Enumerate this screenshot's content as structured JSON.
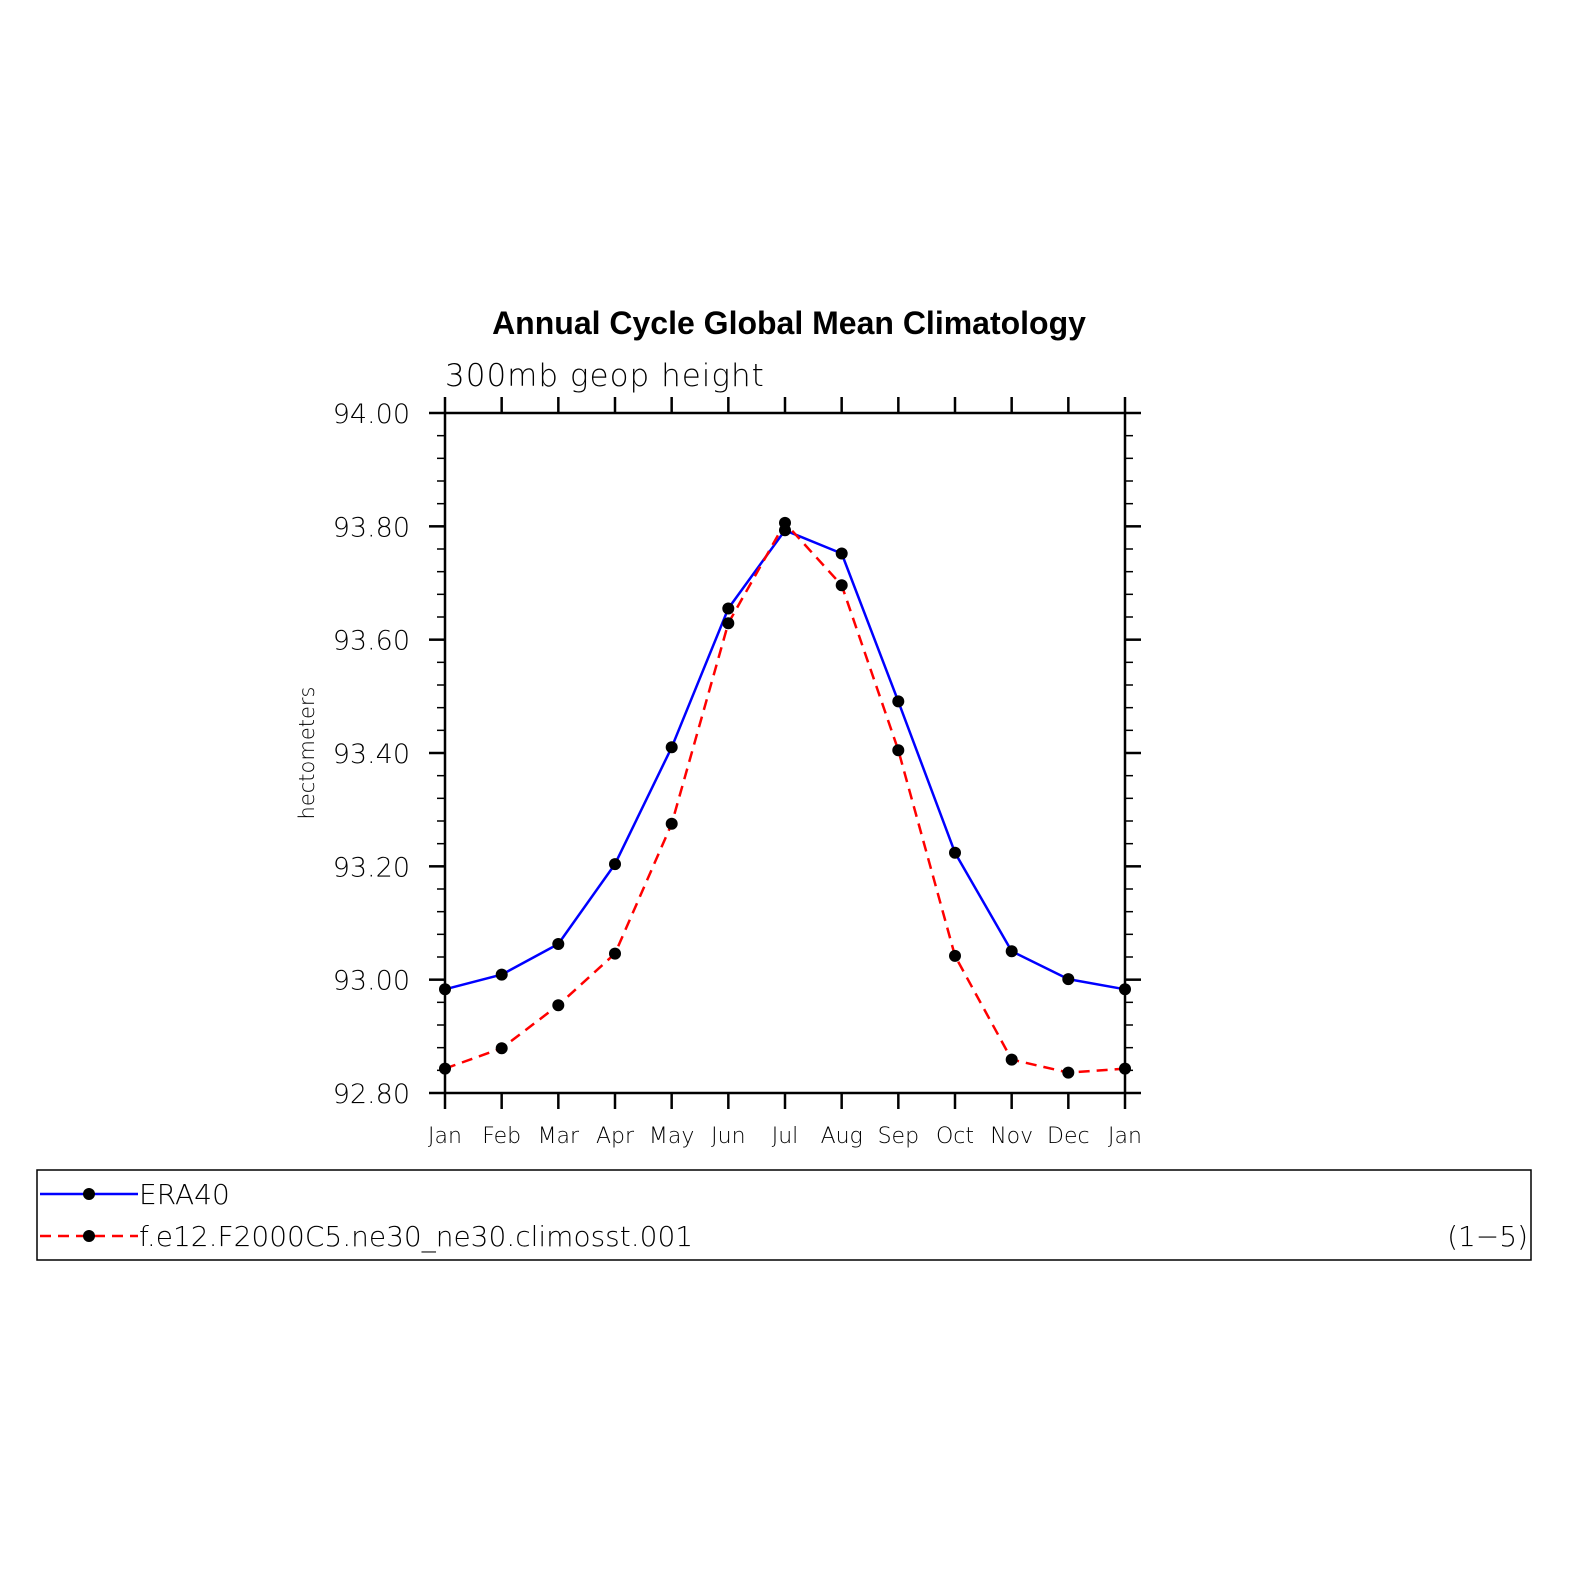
{
  "chart_data": {
    "type": "line",
    "title": "Annual Cycle Global Mean Climatology",
    "subtitle": "300mb geop height",
    "ylabel": "hectometers",
    "xlabel": "",
    "categories": [
      "Jan",
      "Feb",
      "Mar",
      "Apr",
      "May",
      "Jun",
      "Jul",
      "Aug",
      "Sep",
      "Oct",
      "Nov",
      "Dec",
      "Jan"
    ],
    "ylim": [
      92.8,
      94.0
    ],
    "yticks": [
      "92.80",
      "93.00",
      "93.20",
      "93.40",
      "93.60",
      "93.80",
      "94.00"
    ],
    "series": [
      {
        "name": "ERA40",
        "color": "#0000ff",
        "style": "solid",
        "marker": "filled-circle",
        "values": [
          92.983,
          93.009,
          93.063,
          93.204,
          93.41,
          93.655,
          93.793,
          93.752,
          93.491,
          93.224,
          93.05,
          93.001,
          92.983
        ]
      },
      {
        "name": "f.e12.F2000C5.ne30_ne30.climosst.001",
        "color": "#ff0000",
        "style": "dashed",
        "marker": "filled-circle",
        "values": [
          92.843,
          92.879,
          92.955,
          93.046,
          93.275,
          93.629,
          93.806,
          93.696,
          93.405,
          93.042,
          92.859,
          92.836,
          92.843
        ]
      }
    ],
    "legend_position": "bottom",
    "legend_note": "(1−5)",
    "grid": false
  }
}
